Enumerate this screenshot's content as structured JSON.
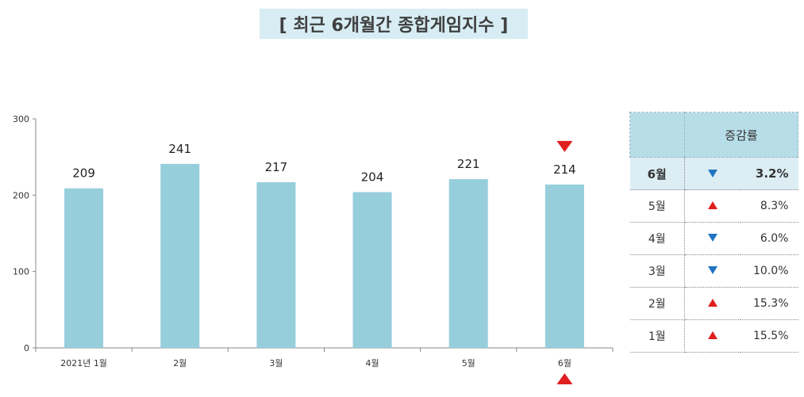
{
  "title": "[ 최근 6개월간 종합게임지수 ]",
  "colors": {
    "bar": "#96cedc",
    "up": "#e01f1f",
    "down": "#1f74c1",
    "header_bg": "#b7dde8",
    "highlight_bg": "#dceef4",
    "title_bg": "#d7edf3"
  },
  "chart_data": {
    "type": "bar",
    "categories": [
      "2021년 1월",
      "2월",
      "3월",
      "4월",
      "5월",
      "6월"
    ],
    "values": [
      209,
      241,
      217,
      204,
      221,
      214
    ],
    "ylim": [
      0,
      300
    ],
    "yticks": [
      0,
      100,
      200,
      300
    ],
    "grid": false,
    "legend": "none",
    "annotations": [
      {
        "category": "6월",
        "marker": "down-triangle-above"
      },
      {
        "category": "6월",
        "marker": "up-triangle-below"
      }
    ]
  },
  "table": {
    "header": {
      "blank": "",
      "label": "증감률"
    },
    "rows": [
      {
        "month": "6월",
        "direction": "down",
        "pct": "3.2%",
        "highlight": true
      },
      {
        "month": "5월",
        "direction": "up",
        "pct": "8.3%"
      },
      {
        "month": "4월",
        "direction": "down",
        "pct": "6.0%"
      },
      {
        "month": "3월",
        "direction": "down",
        "pct": "10.0%"
      },
      {
        "month": "2월",
        "direction": "up",
        "pct": "15.3%"
      },
      {
        "month": "1월",
        "direction": "up",
        "pct": "15.5%"
      }
    ]
  }
}
